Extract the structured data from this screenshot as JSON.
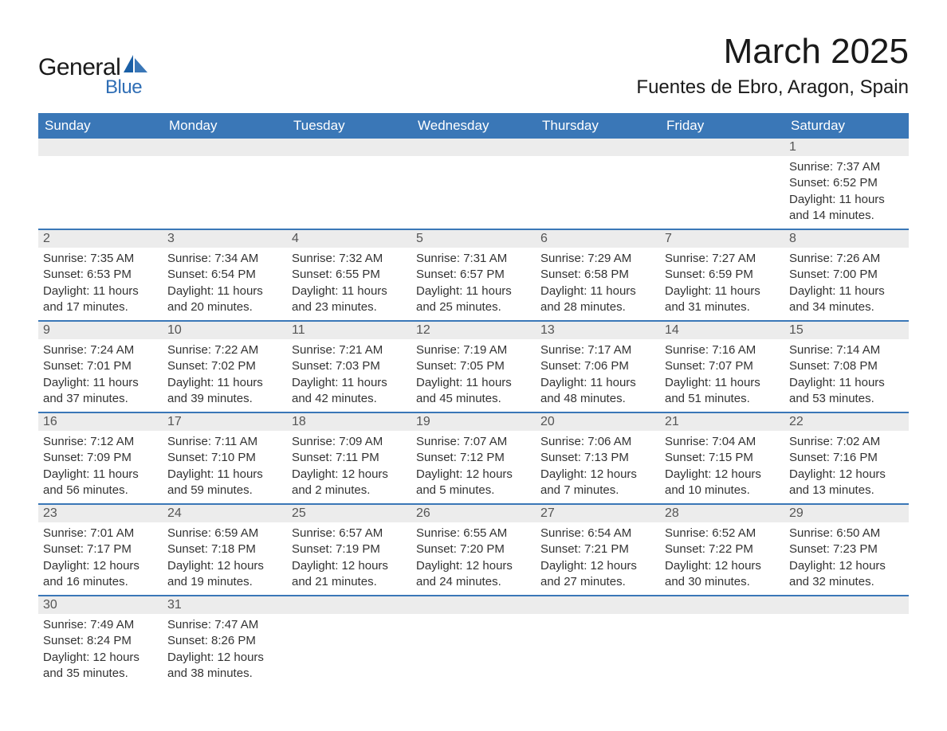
{
  "branding": {
    "logo_general": "General",
    "logo_blue": "Blue",
    "colors": {
      "brand_blue": "#2f6eb5",
      "header_blue": "#3a77b7",
      "daynum_bg": "#ececec",
      "text": "#333333",
      "title_text": "#1a1a1a",
      "white": "#ffffff"
    },
    "typography": {
      "body_font": "Arial",
      "month_title_size_pt": 33,
      "location_size_pt": 18,
      "header_size_pt": 13,
      "body_size_pt": 11
    }
  },
  "title": {
    "month_year": "March 2025",
    "location": "Fuentes de Ebro, Aragon, Spain"
  },
  "calendar": {
    "type": "table",
    "columns": [
      "Sunday",
      "Monday",
      "Tuesday",
      "Wednesday",
      "Thursday",
      "Friday",
      "Saturday"
    ],
    "labels": {
      "sunrise": "Sunrise",
      "sunset": "Sunset",
      "daylight": "Daylight"
    },
    "weeks": [
      [
        null,
        null,
        null,
        null,
        null,
        null,
        {
          "n": "1",
          "sunrise": "7:37 AM",
          "sunset": "6:52 PM",
          "daylight": "11 hours and 14 minutes."
        }
      ],
      [
        {
          "n": "2",
          "sunrise": "7:35 AM",
          "sunset": "6:53 PM",
          "daylight": "11 hours and 17 minutes."
        },
        {
          "n": "3",
          "sunrise": "7:34 AM",
          "sunset": "6:54 PM",
          "daylight": "11 hours and 20 minutes."
        },
        {
          "n": "4",
          "sunrise": "7:32 AM",
          "sunset": "6:55 PM",
          "daylight": "11 hours and 23 minutes."
        },
        {
          "n": "5",
          "sunrise": "7:31 AM",
          "sunset": "6:57 PM",
          "daylight": "11 hours and 25 minutes."
        },
        {
          "n": "6",
          "sunrise": "7:29 AM",
          "sunset": "6:58 PM",
          "daylight": "11 hours and 28 minutes."
        },
        {
          "n": "7",
          "sunrise": "7:27 AM",
          "sunset": "6:59 PM",
          "daylight": "11 hours and 31 minutes."
        },
        {
          "n": "8",
          "sunrise": "7:26 AM",
          "sunset": "7:00 PM",
          "daylight": "11 hours and 34 minutes."
        }
      ],
      [
        {
          "n": "9",
          "sunrise": "7:24 AM",
          "sunset": "7:01 PM",
          "daylight": "11 hours and 37 minutes."
        },
        {
          "n": "10",
          "sunrise": "7:22 AM",
          "sunset": "7:02 PM",
          "daylight": "11 hours and 39 minutes."
        },
        {
          "n": "11",
          "sunrise": "7:21 AM",
          "sunset": "7:03 PM",
          "daylight": "11 hours and 42 minutes."
        },
        {
          "n": "12",
          "sunrise": "7:19 AM",
          "sunset": "7:05 PM",
          "daylight": "11 hours and 45 minutes."
        },
        {
          "n": "13",
          "sunrise": "7:17 AM",
          "sunset": "7:06 PM",
          "daylight": "11 hours and 48 minutes."
        },
        {
          "n": "14",
          "sunrise": "7:16 AM",
          "sunset": "7:07 PM",
          "daylight": "11 hours and 51 minutes."
        },
        {
          "n": "15",
          "sunrise": "7:14 AM",
          "sunset": "7:08 PM",
          "daylight": "11 hours and 53 minutes."
        }
      ],
      [
        {
          "n": "16",
          "sunrise": "7:12 AM",
          "sunset": "7:09 PM",
          "daylight": "11 hours and 56 minutes."
        },
        {
          "n": "17",
          "sunrise": "7:11 AM",
          "sunset": "7:10 PM",
          "daylight": "11 hours and 59 minutes."
        },
        {
          "n": "18",
          "sunrise": "7:09 AM",
          "sunset": "7:11 PM",
          "daylight": "12 hours and 2 minutes."
        },
        {
          "n": "19",
          "sunrise": "7:07 AM",
          "sunset": "7:12 PM",
          "daylight": "12 hours and 5 minutes."
        },
        {
          "n": "20",
          "sunrise": "7:06 AM",
          "sunset": "7:13 PM",
          "daylight": "12 hours and 7 minutes."
        },
        {
          "n": "21",
          "sunrise": "7:04 AM",
          "sunset": "7:15 PM",
          "daylight": "12 hours and 10 minutes."
        },
        {
          "n": "22",
          "sunrise": "7:02 AM",
          "sunset": "7:16 PM",
          "daylight": "12 hours and 13 minutes."
        }
      ],
      [
        {
          "n": "23",
          "sunrise": "7:01 AM",
          "sunset": "7:17 PM",
          "daylight": "12 hours and 16 minutes."
        },
        {
          "n": "24",
          "sunrise": "6:59 AM",
          "sunset": "7:18 PM",
          "daylight": "12 hours and 19 minutes."
        },
        {
          "n": "25",
          "sunrise": "6:57 AM",
          "sunset": "7:19 PM",
          "daylight": "12 hours and 21 minutes."
        },
        {
          "n": "26",
          "sunrise": "6:55 AM",
          "sunset": "7:20 PM",
          "daylight": "12 hours and 24 minutes."
        },
        {
          "n": "27",
          "sunrise": "6:54 AM",
          "sunset": "7:21 PM",
          "daylight": "12 hours and 27 minutes."
        },
        {
          "n": "28",
          "sunrise": "6:52 AM",
          "sunset": "7:22 PM",
          "daylight": "12 hours and 30 minutes."
        },
        {
          "n": "29",
          "sunrise": "6:50 AM",
          "sunset": "7:23 PM",
          "daylight": "12 hours and 32 minutes."
        }
      ],
      [
        {
          "n": "30",
          "sunrise": "7:49 AM",
          "sunset": "8:24 PM",
          "daylight": "12 hours and 35 minutes."
        },
        {
          "n": "31",
          "sunrise": "7:47 AM",
          "sunset": "8:26 PM",
          "daylight": "12 hours and 38 minutes."
        },
        null,
        null,
        null,
        null,
        null
      ]
    ]
  }
}
